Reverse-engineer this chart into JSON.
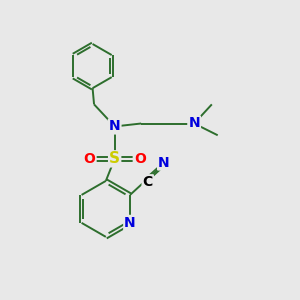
{
  "bg_color": "#e8e8e8",
  "bond_color": "#2d6e2d",
  "atom_colors": {
    "N": "#0000dd",
    "S": "#cccc00",
    "O": "#ff0000",
    "C": "#000000"
  },
  "figsize": [
    3.0,
    3.0
  ],
  "dpi": 100
}
